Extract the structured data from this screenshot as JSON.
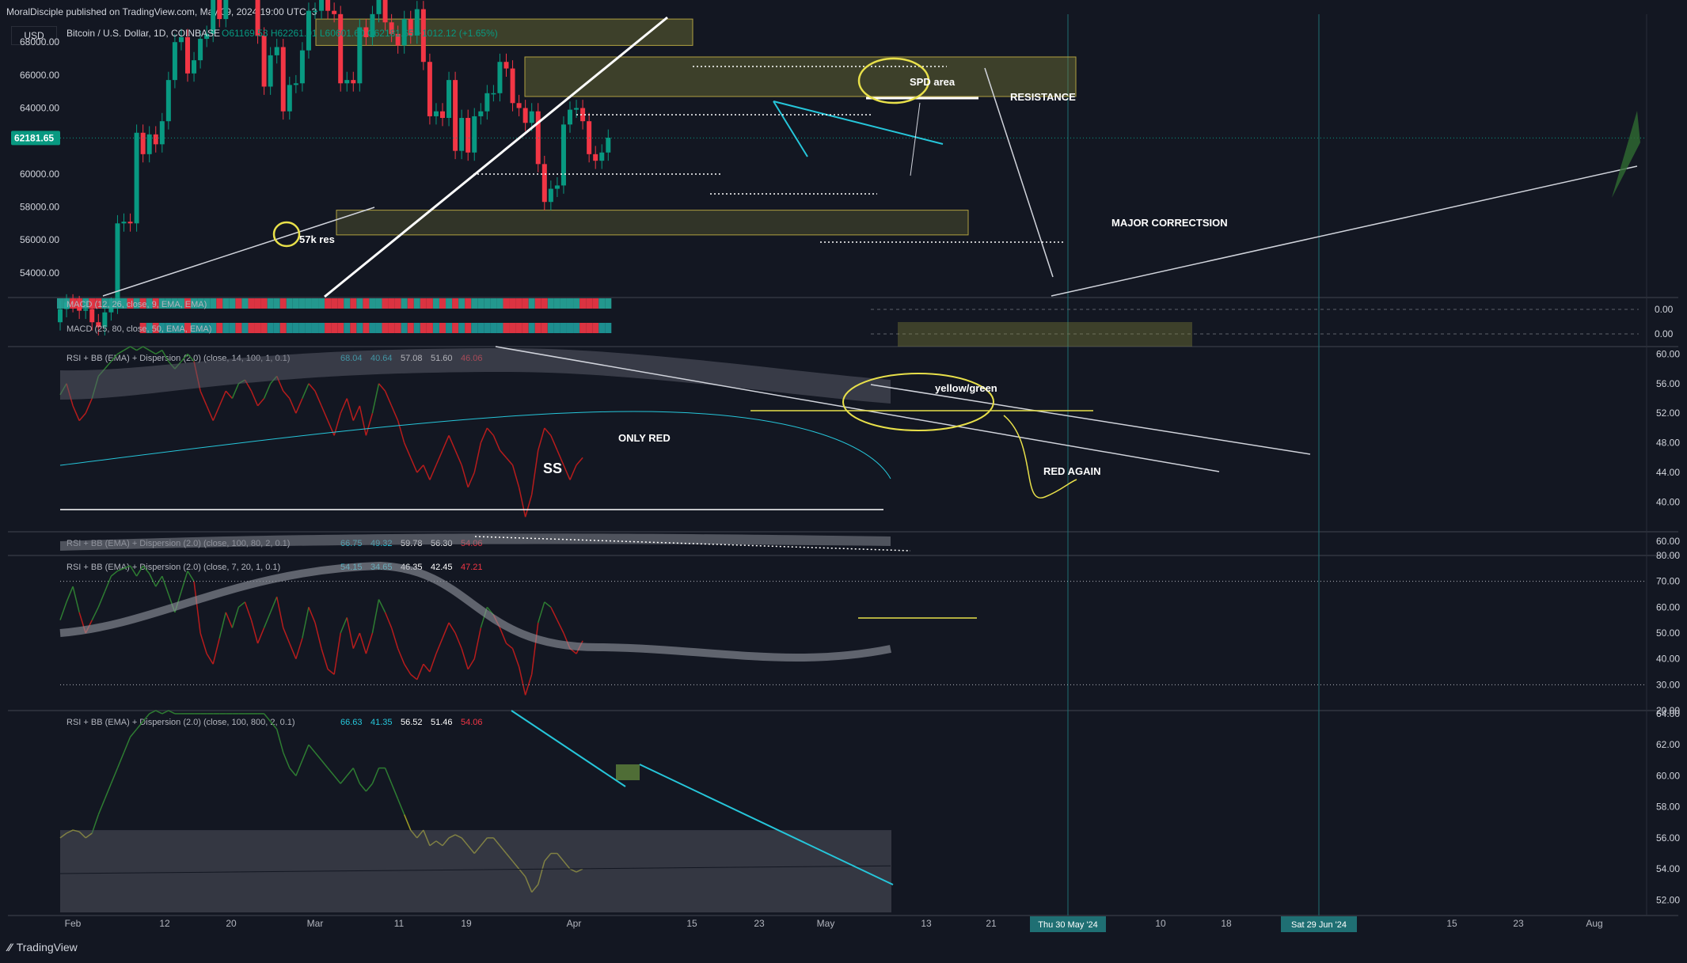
{
  "header": {
    "published": "MoralDisciple published on TradingView.com, May 09, 2024 19:00 UTC+3",
    "currency": "USD",
    "symbol": "Bitcoin / U.S. Dollar, 1D, COINBASE",
    "ohlc": "O61169.53 H62261.01 L60601.60 C62181.65 +1012.12 (+1.65%)"
  },
  "brand": "TradingView",
  "colors": {
    "bg": "#131722",
    "up": "#089981",
    "down": "#f23645",
    "zone": "#8b8b3a",
    "cyan": "#26c6da",
    "yellow": "#e8e04a"
  },
  "chart_data": [
    {
      "type": "candlestick",
      "title": "Bitcoin / U.S. Dollar, 1D, COINBASE",
      "ylim": [
        52500,
        69500
      ],
      "yticks": [
        54000,
        56000,
        58000,
        60000,
        62000,
        64000,
        66000,
        68000
      ],
      "yticks_labels": [
        "54000.00",
        "56000.00",
        "58000.00",
        "60000.00",
        "62000.00",
        "64000.00",
        "66000.00",
        "68000.00"
      ],
      "last_price": 62181.65,
      "last_price_label": "62181.65",
      "close": [
        51800,
        52200,
        52100,
        51700,
        51800,
        51000,
        50700,
        51600,
        52000,
        57000,
        57100,
        57000,
        62500,
        61200,
        62400,
        61800,
        63200,
        65700,
        68000,
        68300,
        66100,
        66900,
        68200,
        68500,
        71200,
        69400,
        71300,
        73000,
        71800,
        73100,
        71400,
        68400,
        65300,
        67200,
        67700,
        63800,
        65400,
        65500,
        67500,
        69900,
        69900,
        70600,
        69900,
        69700,
        65500,
        65700,
        65500,
        68900,
        68300,
        69700,
        71300,
        69200,
        68500,
        67800,
        69400,
        68400,
        70000,
        66800,
        63500,
        63800,
        63400,
        65700,
        61400,
        63400,
        61300,
        63500,
        63800,
        64900,
        64900,
        66800,
        66400,
        64300,
        64000,
        63100,
        63800,
        60600,
        58300,
        59100,
        59300,
        63000,
        63900,
        64000,
        63200,
        61200,
        60800,
        61300,
        62200
      ],
      "annotations": [
        "57k res",
        "SPD area",
        "RESISTANCE",
        "MAJOR CORRECTSION"
      ],
      "macd_rows": [
        "MACD (12, 26, close, 9, EMA, EMA)",
        "MACD (25, 80, close, 50, EMA, EMA)"
      ],
      "macd_values": [
        "0.00",
        "0.00"
      ]
    },
    {
      "type": "line",
      "title": "RSI + BB (EMA) + Dispersion (2.0) (close, 14, 100, 1, 0.1)",
      "legend_values": [
        "68.04",
        "40.64",
        "57.08",
        "51.60",
        "46.06"
      ],
      "ylim": [
        36,
        61
      ],
      "yticks_labels": [
        "60.00",
        "56.00",
        "52.00",
        "48.00",
        "44.00",
        "40.00"
      ],
      "values": [
        54.5,
        56,
        53,
        51,
        52,
        54,
        57,
        58,
        59,
        60,
        60.5,
        61,
        60.5,
        61,
        60.5,
        60,
        60.5,
        59,
        58,
        59,
        60,
        59,
        55,
        53,
        51,
        53,
        55,
        54,
        56,
        56.5,
        55,
        53,
        54,
        56,
        57,
        55,
        54,
        52,
        54,
        56,
        55,
        53,
        51,
        49,
        52,
        54,
        51,
        53,
        49,
        52,
        56,
        55,
        53,
        51,
        48,
        46,
        44,
        45,
        43,
        45,
        47,
        49,
        47,
        45,
        42,
        44,
        48,
        50,
        49,
        47,
        46,
        45,
        42,
        38,
        41,
        47,
        50,
        49,
        47,
        45,
        43,
        45,
        46
      ],
      "annotations": [
        "yellow/green",
        "ONLY RED",
        "RED AGAIN",
        "SS"
      ]
    },
    {
      "type": "line",
      "title": "RSI + BB (EMA) + Dispersion (2.0) (close, 100, 80, 2, 0.1)",
      "legend_values": [
        "66.75",
        "49.32",
        "59.78",
        "56.30",
        "54.06"
      ],
      "yticks_labels": [
        "60.00"
      ]
    },
    {
      "type": "line",
      "title": "RSI + BB (EMA) + Dispersion (2.0) (close, 7, 20, 1, 0.1)",
      "legend_values": [
        "54.15",
        "34.65",
        "46.35",
        "42.45",
        "47.21"
      ],
      "ylim": [
        20,
        80
      ],
      "yticks_labels": [
        "80.00",
        "70.00",
        "60.00",
        "50.00",
        "40.00",
        "30.00",
        "20.00"
      ],
      "values": [
        55,
        62,
        68,
        58,
        50,
        55,
        60,
        66,
        72,
        74,
        75,
        76,
        72,
        76,
        73,
        68,
        72,
        65,
        58,
        66,
        74,
        70,
        50,
        42,
        38,
        48,
        58,
        52,
        60,
        62,
        55,
        46,
        52,
        58,
        64,
        52,
        46,
        40,
        48,
        60,
        54,
        44,
        36,
        34,
        50,
        56,
        44,
        50,
        42,
        50,
        63,
        58,
        52,
        44,
        38,
        34,
        32,
        38,
        35,
        42,
        48,
        54,
        50,
        44,
        36,
        40,
        52,
        60,
        57,
        52,
        46,
        44,
        37,
        26,
        34,
        54,
        62,
        60,
        55,
        50,
        44,
        42,
        47
      ]
    },
    {
      "type": "line",
      "title": "RSI + BB (EMA) + Dispersion (2.0) (close, 100, 800, 2, 0.1)",
      "legend_values": [
        "66.63",
        "41.35",
        "56.52",
        "51.46",
        "54.06"
      ],
      "ylim": [
        51,
        64.2
      ],
      "yticks_labels": [
        "64.00",
        "62.00",
        "60.00",
        "58.00",
        "56.00",
        "54.00",
        "52.00"
      ],
      "values": [
        56,
        56.3,
        56.5,
        56.4,
        56,
        56.3,
        57.5,
        58.5,
        59.5,
        60.5,
        61.5,
        62.5,
        63,
        63.5,
        64,
        64.2,
        64,
        64.2,
        64,
        64,
        64,
        64,
        64,
        64,
        64,
        64,
        64,
        64,
        64,
        64,
        64,
        64,
        64,
        63.5,
        63,
        61.5,
        60.5,
        60,
        61,
        62,
        61.5,
        61,
        60.5,
        60,
        59.5,
        60,
        60.5,
        59.5,
        59,
        59.5,
        60.5,
        60.5,
        59.5,
        58.5,
        57.5,
        56.5,
        56,
        56.5,
        55.5,
        55.8,
        55.5,
        56,
        56.2,
        56,
        55.5,
        55,
        55.5,
        56,
        56,
        55.5,
        55,
        54.5,
        54,
        53.5,
        52.5,
        53,
        54.5,
        55,
        55,
        54.5,
        54,
        53.8,
        54
      ]
    }
  ],
  "xaxis": {
    "labels": [
      "Feb",
      "12",
      "20",
      "Mar",
      "11",
      "19",
      "Apr",
      "15",
      "23",
      "May",
      "13",
      "21",
      "10",
      "18",
      "15",
      "23",
      "Aug"
    ],
    "highlighted": [
      "Thu 30 May '24",
      "Sat 29 Jun '24"
    ]
  }
}
